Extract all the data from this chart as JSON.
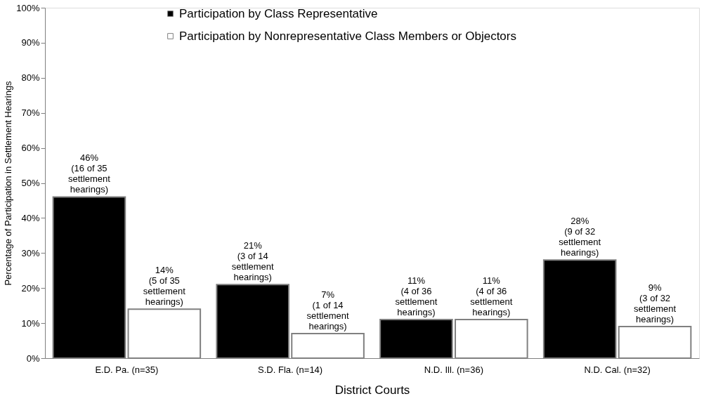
{
  "chart_data": {
    "type": "bar",
    "xlabel": "District Courts",
    "ylabel": "Percentage of Participation in Settlement Hearings",
    "categories": [
      "E.D. Pa. (n=35)",
      "S.D. Fla. (n=14)",
      "N.D. Ill. (n=36)",
      "N.D. Cal. (n=32)"
    ],
    "series": [
      {
        "name": "Participation by Class Representative",
        "color": "#000000",
        "values": [
          46,
          21,
          11,
          28
        ],
        "value_labels": [
          "46%\n(16 of 35\nsettlement\nhearings)",
          "21%\n(3 of 14\nsettlement\nhearings)",
          "11%\n(4 of 36\nsettlement\nhearings)",
          "28%\n(9 of 32\nsettlement\nhearings)"
        ]
      },
      {
        "name": "Participation by Nonrepresentative Class Members or Objectors",
        "color": "#ffffff",
        "values": [
          14,
          7,
          11,
          9
        ],
        "value_labels": [
          "14%\n(5 of 35\nsettlement\nhearings)",
          "7%\n(1 of 14\nsettlement\nhearings)",
          "11%\n(4 of 36\nsettlement\nhearings)",
          "9%\n(3 of 32\nsettlement\nhearings)"
        ]
      }
    ],
    "ylim": [
      0,
      100
    ],
    "yticks": [
      {
        "value": 0,
        "label": "0%"
      },
      {
        "value": 10,
        "label": "10%"
      },
      {
        "value": 20,
        "label": "20%"
      },
      {
        "value": 30,
        "label": "30%"
      },
      {
        "value": 40,
        "label": "40%"
      },
      {
        "value": 50,
        "label": "50%"
      },
      {
        "value": 60,
        "label": "60%"
      },
      {
        "value": 70,
        "label": "70%"
      },
      {
        "value": 80,
        "label": "80%"
      },
      {
        "value": 90,
        "label": "90%"
      },
      {
        "value": 100,
        "label": "100%"
      }
    ],
    "grid": false,
    "legend": "top"
  }
}
